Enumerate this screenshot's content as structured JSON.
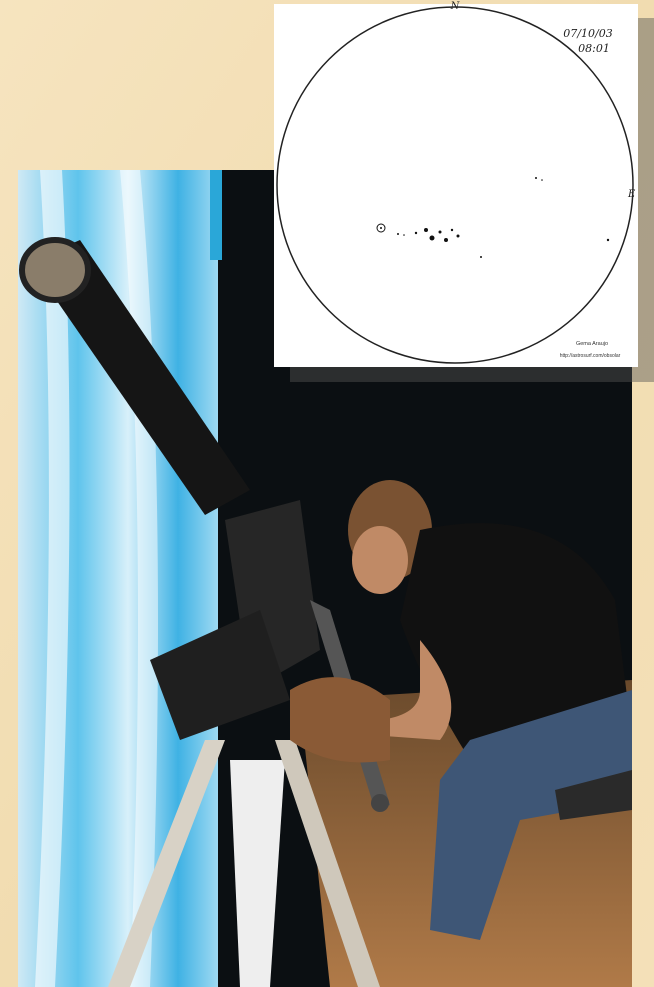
{
  "drawing": {
    "north_label": "N",
    "east_label": "E",
    "date": "07/10/03",
    "time": "08:01",
    "author": "Gema Araujo",
    "url": "http://astrosurf.com/obsolar"
  }
}
